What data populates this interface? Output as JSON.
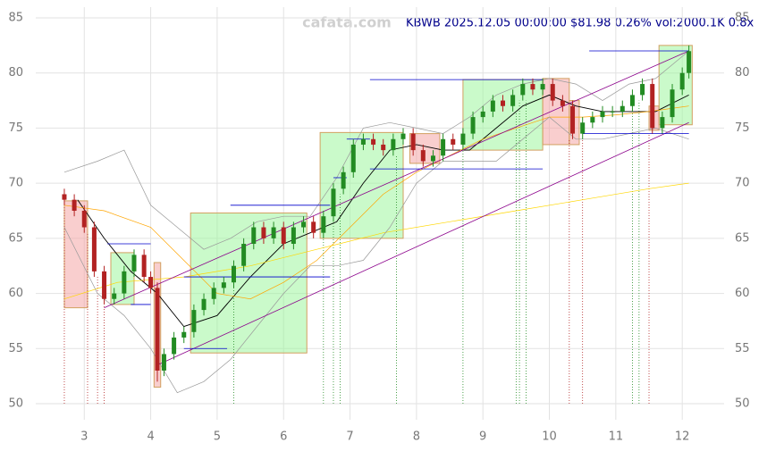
{
  "chart_data": {
    "type": "candlestick",
    "watermark": "cafata.com",
    "title": "KBWB 2025.12.05 00:00:00 $81.98 0.26% vol:2000.1K 0.8x",
    "xlim": [
      2.27,
      12.63
    ],
    "xticks": [
      3,
      4,
      5,
      6,
      7,
      8,
      9,
      10,
      11,
      12
    ],
    "ylim": [
      50,
      85
    ],
    "yticks": [
      50,
      55,
      60,
      65,
      70,
      75,
      80,
      85
    ],
    "grid": true,
    "up_color": "#228b22",
    "down_color": "#b22222",
    "candles": {
      "x": [
        2.7,
        2.85,
        3.0,
        3.15,
        3.3,
        3.45,
        3.6,
        3.75,
        3.9,
        4.0,
        4.1,
        4.2,
        4.35,
        4.5,
        4.65,
        4.8,
        4.95,
        5.1,
        5.25,
        5.4,
        5.55,
        5.7,
        5.85,
        6.0,
        6.15,
        6.3,
        6.45,
        6.6,
        6.75,
        6.9,
        7.05,
        7.2,
        7.35,
        7.5,
        7.65,
        7.8,
        7.95,
        8.1,
        8.25,
        8.4,
        8.55,
        8.7,
        8.85,
        9.0,
        9.15,
        9.3,
        9.45,
        9.6,
        9.75,
        9.9,
        10.05,
        10.2,
        10.35,
        10.5,
        10.65,
        10.8,
        10.95,
        11.1,
        11.25,
        11.4,
        11.55,
        11.7,
        11.85,
        12.0,
        12.1
      ],
      "open": [
        69,
        68.5,
        67.5,
        66,
        62,
        59.5,
        60,
        62,
        63.5,
        61.5,
        60.5,
        53,
        54.5,
        56,
        56.5,
        58.5,
        59.5,
        60.5,
        61,
        62.5,
        64.5,
        66,
        65,
        66,
        64.5,
        66,
        66.5,
        65.5,
        67,
        69.5,
        71,
        73.5,
        74,
        73.5,
        73,
        74,
        74.5,
        73,
        72,
        72.5,
        74,
        73.5,
        74.5,
        76,
        76.5,
        77.5,
        77,
        78,
        79,
        78.5,
        79,
        77.5,
        77,
        74.5,
        75.5,
        76,
        76.5,
        76.5,
        77,
        78,
        79,
        75,
        76,
        78.5,
        80
      ],
      "high": [
        69.5,
        69,
        68,
        66.5,
        62.5,
        60.5,
        62.5,
        64,
        64,
        62,
        61,
        55,
        56.5,
        57,
        59,
        60,
        61,
        61.5,
        63,
        65,
        66.5,
        66.5,
        66.5,
        66.5,
        66.5,
        67,
        67,
        67.5,
        70,
        71.5,
        74,
        74.5,
        74.5,
        74,
        74.5,
        75,
        75,
        73.5,
        73,
        74.5,
        74.5,
        75,
        76.5,
        77,
        78,
        78,
        78.5,
        79.5,
        79.5,
        79.5,
        79.5,
        78,
        77.5,
        76,
        76.5,
        77,
        77,
        77.5,
        78.5,
        79.5,
        79.5,
        76.5,
        79,
        80.5,
        82.5
      ],
      "low": [
        68,
        67,
        65.5,
        61.5,
        59,
        59,
        59.5,
        61.5,
        61,
        60,
        52,
        52.5,
        54,
        55.5,
        56,
        58,
        59,
        60,
        60.5,
        62,
        64,
        64.5,
        64.5,
        64,
        64,
        65.5,
        65,
        65,
        66.5,
        69,
        70.5,
        73,
        73,
        72.5,
        72.5,
        73.5,
        72.5,
        71.5,
        71.5,
        72,
        73,
        73,
        74,
        75.5,
        76,
        76.5,
        76.5,
        77.5,
        78,
        78,
        77,
        76.5,
        74,
        74,
        75,
        75.5,
        76,
        76,
        76.5,
        77.5,
        74.5,
        74.5,
        75.5,
        78,
        79.5
      ],
      "close": [
        68.5,
        67.5,
        66,
        62,
        59.5,
        60,
        62,
        63.5,
        61.5,
        60.5,
        53,
        54.5,
        56,
        56.5,
        58.5,
        59.5,
        60.5,
        61,
        62.5,
        64.5,
        66,
        65,
        66,
        64.5,
        66,
        66.5,
        65.5,
        67,
        69.5,
        71,
        73.5,
        74,
        73.5,
        73,
        74,
        74.5,
        73,
        72,
        72.5,
        74,
        73.5,
        74.5,
        76,
        76.5,
        77.5,
        77,
        78,
        79,
        78.5,
        79,
        77.5,
        77,
        74.5,
        75.5,
        76,
        76.5,
        76.5,
        77,
        78,
        79,
        75,
        76,
        78.5,
        80,
        81.98
      ]
    },
    "overlays": [
      {
        "color": "#000000",
        "x": [
          2.9,
          3.3,
          3.7,
          4.1,
          4.5,
          5.0,
          5.5,
          6.0,
          6.4,
          6.8,
          7.2,
          7.6,
          8.0,
          8.4,
          8.8,
          9.2,
          9.6,
          10.0,
          10.4,
          10.8,
          11.2,
          11.6,
          12.1
        ],
        "values": [
          68.5,
          65,
          62,
          60,
          57,
          58,
          61.5,
          64.5,
          65.5,
          66.5,
          70,
          73,
          73.5,
          73,
          73,
          75,
          77,
          78,
          77,
          76.5,
          76.5,
          76.5,
          78
        ]
      },
      {
        "color": "#ffa500",
        "x": [
          2.7,
          3.3,
          4.0,
          4.5,
          5.0,
          5.5,
          6.0,
          6.5,
          7.0,
          7.5,
          8.0,
          8.5,
          9.0,
          9.5,
          10.0,
          10.5,
          11.0,
          11.5,
          12.1
        ],
        "values": [
          68,
          67.5,
          66,
          63,
          60,
          59.5,
          61,
          63,
          66,
          69,
          71,
          72.5,
          74,
          75,
          76,
          76,
          76.2,
          76.5,
          77
        ]
      },
      {
        "color": "#ffd700",
        "x": [
          2.7,
          3.5,
          4.5,
          5.5,
          6.5,
          7.5,
          8.5,
          9.5,
          10.5,
          11.5,
          12.1
        ],
        "values": [
          59.5,
          61,
          61.5,
          62.5,
          64,
          65.5,
          66.5,
          67.5,
          68.5,
          69.5,
          70
        ]
      },
      {
        "color": "#999999",
        "x": [
          2.7,
          3.2,
          3.6,
          4.0,
          4.4,
          4.8,
          5.2,
          5.6,
          6.0,
          6.4,
          6.8,
          7.2,
          7.6,
          8.0,
          8.4,
          8.8,
          9.2,
          9.6,
          10.0,
          10.4,
          10.8,
          11.2,
          11.6,
          12.1
        ],
        "values": [
          71,
          72,
          73,
          68,
          66,
          64,
          65,
          66.5,
          67,
          67,
          70.5,
          75,
          75.5,
          75,
          74.5,
          76,
          78,
          79,
          79.5,
          79,
          77.5,
          79,
          79.5,
          82
        ]
      },
      {
        "color": "#999999",
        "x": [
          2.7,
          3.2,
          3.6,
          4.0,
          4.4,
          4.8,
          5.2,
          5.6,
          6.0,
          6.4,
          6.8,
          7.2,
          7.6,
          8.0,
          8.4,
          8.8,
          9.2,
          9.6,
          10.0,
          10.4,
          10.8,
          11.2,
          11.6,
          12.1
        ],
        "values": [
          66,
          60,
          58,
          55,
          51,
          52,
          54,
          57,
          60,
          62.5,
          62.5,
          63,
          66,
          70,
          72,
          72,
          72,
          74,
          76,
          74,
          74,
          74.5,
          75,
          74
        ]
      }
    ],
    "zones": [
      {
        "color": "#f4a6a6",
        "x": [
          2.7,
          3.05
        ],
        "y": [
          58.7,
          68.4
        ]
      },
      {
        "color": "#9ef59e",
        "x": [
          3.4,
          3.75
        ],
        "y": [
          59,
          63.7
        ]
      },
      {
        "color": "#f4a6a6",
        "x": [
          4.05,
          4.15
        ],
        "y": [
          51.5,
          62.8
        ]
      },
      {
        "color": "#9ef59e",
        "x": [
          4.6,
          6.35
        ],
        "y": [
          54.6,
          67.3
        ]
      },
      {
        "color": "#9ef59e",
        "x": [
          6.55,
          7.8
        ],
        "y": [
          65,
          74.6
        ]
      },
      {
        "color": "#f4a6a6",
        "x": [
          7.9,
          8.35
        ],
        "y": [
          71.8,
          74.5
        ]
      },
      {
        "color": "#9ef59e",
        "x": [
          8.7,
          9.9
        ],
        "y": [
          73,
          79.4
        ]
      },
      {
        "color": "#f4a6a6",
        "x": [
          9.9,
          10.3
        ],
        "y": [
          73.5,
          79.5
        ]
      },
      {
        "color": "#f4a6a6",
        "x": [
          10.3,
          10.45
        ],
        "y": [
          73.5,
          77.5
        ]
      },
      {
        "color": "#f4a6a6",
        "x": [
          11.5,
          11.65
        ],
        "y": [
          74.8,
          77
        ]
      },
      {
        "color": "#9ef59e",
        "x": [
          11.65,
          12.15
        ],
        "y": [
          75.3,
          82.5
        ]
      }
    ],
    "levels": [
      {
        "x": [
          3.35,
          4.0
        ],
        "y": 64.5
      },
      {
        "x": [
          4.5,
          6.7
        ],
        "y": 61.5
      },
      {
        "x": [
          4.5,
          5.15
        ],
        "y": 55
      },
      {
        "x": [
          5.2,
          6.7
        ],
        "y": 68
      },
      {
        "x": [
          6.75,
          6.95
        ],
        "y": 70.5
      },
      {
        "x": [
          6.95,
          7.3
        ],
        "y": 74
      },
      {
        "x": [
          7.3,
          9.9
        ],
        "y": 71.3
      },
      {
        "x": [
          7.3,
          9.9
        ],
        "y": 79.4
      },
      {
        "x": [
          10.6,
          12.1
        ],
        "y": 82
      },
      {
        "x": [
          10.5,
          12.1
        ],
        "y": 74.5
      },
      {
        "x": [
          3.7,
          4.0
        ],
        "y": 59
      }
    ],
    "level_color": "#0000cd",
    "trendlines": [
      {
        "x": [
          3.3,
          12.1
        ],
        "y": [
          58.7,
          82
        ]
      },
      {
        "x": [
          4.1,
          12.1
        ],
        "y": [
          53.5,
          75.5
        ]
      }
    ],
    "trend_color": "#8b008b",
    "signals": [
      {
        "color": "#228b22",
        "x": [
          5.25,
          6.6,
          6.75,
          6.85,
          7.7,
          8.7,
          9.5,
          9.55,
          9.65,
          11.25,
          11.35
        ]
      },
      {
        "color": "#b22222",
        "x": [
          2.7,
          3.05,
          3.2,
          3.3,
          10.3,
          10.5,
          11.5
        ]
      }
    ]
  }
}
